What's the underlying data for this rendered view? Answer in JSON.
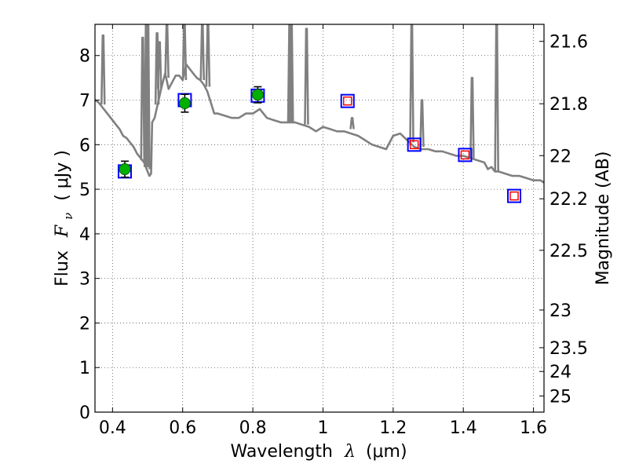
{
  "chart_data": {
    "type": "scatter",
    "title": "",
    "xlabel_text": "Wavelength",
    "xlabel_symbol": "λ",
    "xlabel_unit": "(μm)",
    "ylabel_text": "Flux",
    "ylabel_symbol": "F",
    "ylabel_subscript": "ν",
    "ylabel_unit": "( μJy )",
    "y2label": "Magnitude (AB)",
    "xlim": [
      0.35,
      1.63
    ],
    "ylim": [
      0,
      8.7
    ],
    "grid": true,
    "x_ticks": [
      0.4,
      0.6,
      0.8,
      1.0,
      1.2,
      1.4,
      1.6
    ],
    "x_tick_labels": [
      "0.4",
      "0.6",
      "0.8",
      "1",
      "1.2",
      "1.4",
      "1.6"
    ],
    "y_ticks": [
      0,
      1,
      2,
      3,
      4,
      5,
      6,
      7,
      8
    ],
    "y_tick_labels": [
      "0",
      "1",
      "2",
      "3",
      "4",
      "5",
      "6",
      "7",
      "8"
    ],
    "mag_ticks": [
      21.6,
      21.8,
      22,
      22.2,
      22.5,
      23,
      23.5,
      24,
      25
    ],
    "mag_tick_labels": [
      "21.6",
      "21.8",
      "22",
      "22.2",
      "22.5",
      "23",
      "23.5",
      "24",
      "25"
    ],
    "colors": {
      "model": "#808080",
      "model_box": "#0000ff",
      "upper_limit_box": "#ff0000",
      "detection": "#00b000",
      "errorbar": "#000000",
      "grid": "#555555"
    },
    "series": [
      {
        "name": "model spectrum",
        "kind": "line",
        "x": [
          0.35,
          0.36,
          0.37,
          0.38,
          0.39,
          0.4,
          0.41,
          0.42,
          0.43,
          0.44,
          0.45,
          0.46,
          0.47,
          0.48,
          0.49,
          0.5,
          0.505,
          0.51,
          0.513,
          0.52,
          0.53,
          0.54,
          0.55,
          0.56,
          0.57,
          0.58,
          0.59,
          0.6,
          0.61,
          0.62,
          0.63,
          0.64,
          0.65,
          0.66,
          0.67,
          0.68,
          0.69,
          0.7,
          0.72,
          0.74,
          0.76,
          0.78,
          0.8,
          0.82,
          0.84,
          0.86,
          0.88,
          0.9,
          0.92,
          0.94,
          0.96,
          0.98,
          1.0,
          1.02,
          1.04,
          1.06,
          1.08,
          1.1,
          1.12,
          1.14,
          1.16,
          1.18,
          1.2,
          1.22,
          1.24,
          1.26,
          1.28,
          1.3,
          1.32,
          1.34,
          1.36,
          1.38,
          1.4,
          1.42,
          1.44,
          1.46,
          1.47,
          1.48,
          1.49,
          1.5,
          1.52,
          1.54,
          1.56,
          1.58,
          1.6,
          1.62,
          1.63
        ],
        "y": [
          7.0,
          6.95,
          6.85,
          6.75,
          6.65,
          6.55,
          6.45,
          6.35,
          6.2,
          6.15,
          6.05,
          5.95,
          5.8,
          5.7,
          5.6,
          5.4,
          5.3,
          5.35,
          6.5,
          6.6,
          6.95,
          7.3,
          7.6,
          7.25,
          7.4,
          7.55,
          7.55,
          7.45,
          7.8,
          7.7,
          7.6,
          7.5,
          7.45,
          7.35,
          7.2,
          6.95,
          6.7,
          6.7,
          6.65,
          6.6,
          6.6,
          6.7,
          6.7,
          6.8,
          6.6,
          6.55,
          6.5,
          6.5,
          6.5,
          6.45,
          6.4,
          6.3,
          6.4,
          6.35,
          6.3,
          6.3,
          6.25,
          6.2,
          6.1,
          6.0,
          5.95,
          5.9,
          6.2,
          6.25,
          6.1,
          5.95,
          5.9,
          5.9,
          5.85,
          5.85,
          5.8,
          5.75,
          5.75,
          5.7,
          5.65,
          5.6,
          5.45,
          5.5,
          5.4,
          5.4,
          5.35,
          5.3,
          5.3,
          5.25,
          5.2,
          5.2,
          5.15
        ]
      },
      {
        "name": "emission lines",
        "kind": "spikes",
        "x": [
          0.373,
          0.486,
          0.496,
          0.501,
          0.527,
          0.534,
          0.555,
          0.605,
          0.656,
          0.672,
          0.905,
          0.91,
          0.953,
          1.083,
          1.253,
          1.282,
          1.425,
          1.495
        ],
        "base": [
          6.9,
          5.65,
          5.5,
          5.45,
          6.9,
          7.25,
          7.5,
          7.45,
          7.45,
          7.3,
          6.5,
          6.5,
          6.45,
          6.35,
          6.05,
          5.95,
          5.7,
          5.4
        ],
        "peak": [
          8.45,
          8.4,
          8.7,
          8.7,
          8.5,
          8.3,
          8.7,
          8.7,
          8.7,
          8.7,
          8.7,
          8.7,
          8.6,
          6.6,
          8.7,
          7.0,
          7.5,
          8.7
        ]
      },
      {
        "name": "model photometry",
        "kind": "open-square",
        "x": [
          0.435,
          0.606,
          0.814,
          1.07,
          1.26,
          1.405,
          1.545
        ],
        "y": [
          5.4,
          7.0,
          7.1,
          6.98,
          6.0,
          5.77,
          4.85
        ]
      },
      {
        "name": "detections",
        "kind": "filled-circle",
        "x": [
          0.435,
          0.606,
          0.814
        ],
        "y": [
          5.45,
          6.93,
          7.12
        ],
        "err": [
          0.18,
          0.2,
          0.18
        ]
      },
      {
        "name": "upper limits",
        "kind": "small-square",
        "x": [
          1.07,
          1.26,
          1.405,
          1.545
        ],
        "y": [
          6.98,
          6.0,
          5.77,
          4.85
        ]
      }
    ]
  }
}
